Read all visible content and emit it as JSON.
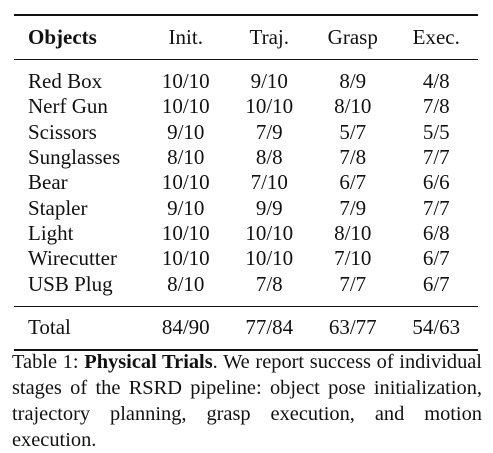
{
  "table": {
    "headers": [
      "Objects",
      "Init.",
      "Traj.",
      "Grasp",
      "Exec."
    ],
    "rows": [
      [
        "Red Box",
        "10/10",
        "9/10",
        "8/9",
        "4/8"
      ],
      [
        "Nerf Gun",
        "10/10",
        "10/10",
        "8/10",
        "7/8"
      ],
      [
        "Scissors",
        "9/10",
        "7/9",
        "5/7",
        "5/5"
      ],
      [
        "Sunglasses",
        "8/10",
        "8/8",
        "7/8",
        "7/7"
      ],
      [
        "Bear",
        "10/10",
        "7/10",
        "6/7",
        "6/6"
      ],
      [
        "Stapler",
        "9/10",
        "9/9",
        "7/9",
        "7/7"
      ],
      [
        "Light",
        "10/10",
        "10/10",
        "8/10",
        "6/8"
      ],
      [
        "Wirecutter",
        "10/10",
        "10/10",
        "7/10",
        "6/7"
      ],
      [
        "USB Plug",
        "8/10",
        "7/8",
        "7/7",
        "6/7"
      ]
    ],
    "total": [
      "Total",
      "84/90",
      "77/84",
      "63/77",
      "54/63"
    ]
  },
  "caption": {
    "label": "Table 1: ",
    "title": "Physical Trials",
    "text": ". We report success of individual stages of the RSRD pipeline: object pose initialization, trajectory planning, grasp execution, and motion execution."
  }
}
